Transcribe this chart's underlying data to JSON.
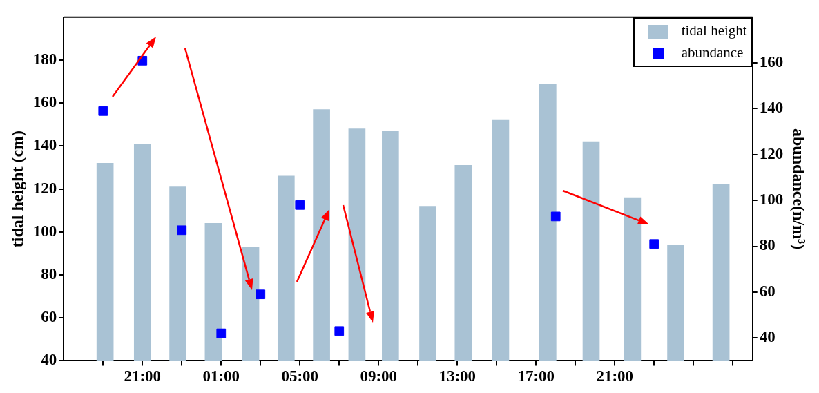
{
  "chart_data": {
    "type": "bar",
    "ylabel": "tidal height (cm)",
    "y2label": "abundance(n/m³)",
    "xlim": [
      "--01-01T17:00",
      "--01-03T04:00"
    ],
    "xticks": [
      {
        "value": "--01-01T19:00",
        "label": null
      },
      {
        "value": "--01-01T21:00",
        "label": "21:00"
      },
      {
        "value": "--01-01T23:00",
        "label": null
      },
      {
        "value": "--01-02T01:00",
        "label": "01:00"
      },
      {
        "value": "--01-02T03:00",
        "label": null
      },
      {
        "value": "--01-02T05:00",
        "label": "05:00"
      },
      {
        "value": "--01-02T07:00",
        "label": null
      },
      {
        "value": "--01-02T09:00",
        "label": "09:00"
      },
      {
        "value": "--01-02T11:00",
        "label": null
      },
      {
        "value": "--01-02T13:00",
        "label": "13:00"
      },
      {
        "value": "--01-02T15:00",
        "label": null
      },
      {
        "value": "--01-02T17:00",
        "label": "17:00"
      },
      {
        "value": "--01-02T19:00",
        "label": null
      },
      {
        "value": "--01-02T21:00",
        "label": "21:00"
      },
      {
        "value": "--01-02T23:00",
        "label": null
      },
      {
        "value": "--01-03T01:00",
        "label": null
      },
      {
        "value": "--01-03T03:00",
        "label": null
      }
    ],
    "ylim": [
      40,
      200
    ],
    "yticks": [
      40,
      60,
      80,
      100,
      120,
      140,
      160,
      180
    ],
    "y2lim": [
      30,
      180
    ],
    "y2ticks": [
      40,
      60,
      80,
      100,
      120,
      140,
      160
    ],
    "grid": false,
    "legend": "top right",
    "series": [
      {
        "name": "tidal height",
        "color": "#a9c2d4",
        "x": [
          "--01-01T19:06",
          "--01-01T21:00",
          "--01-01T22:48",
          "--01-02T00:36",
          "--01-02T02:30",
          "--01-02T04:18",
          "--01-02T06:06",
          "--01-02T07:54",
          "--01-02T09:36",
          "--01-02T11:30",
          "--01-02T13:18",
          "--01-02T15:12",
          "--01-02T17:36",
          "--01-02T19:48",
          "--01-02T21:54",
          "--01-03T00:06",
          "--01-03T02:24"
        ],
        "values": [
          132,
          141,
          121,
          104,
          93,
          126,
          157,
          148,
          147,
          112,
          131,
          152,
          169,
          142,
          116,
          94,
          122
        ]
      },
      {
        "name": "abundance",
        "type": "scatter",
        "axis": "y2",
        "marker": "square",
        "color": "#0000ff",
        "x": [
          "--01-01T19:00",
          "--01-01T21:00",
          "--01-01T23:00",
          "--01-02T01:00",
          "--01-02T03:00",
          "--01-02T05:00",
          "--01-02T07:00",
          "--01-02T18:00",
          "--01-02T23:00"
        ],
        "values": [
          139,
          161,
          87,
          42,
          59,
          98,
          43,
          93,
          81
        ]
      }
    ]
  }
}
